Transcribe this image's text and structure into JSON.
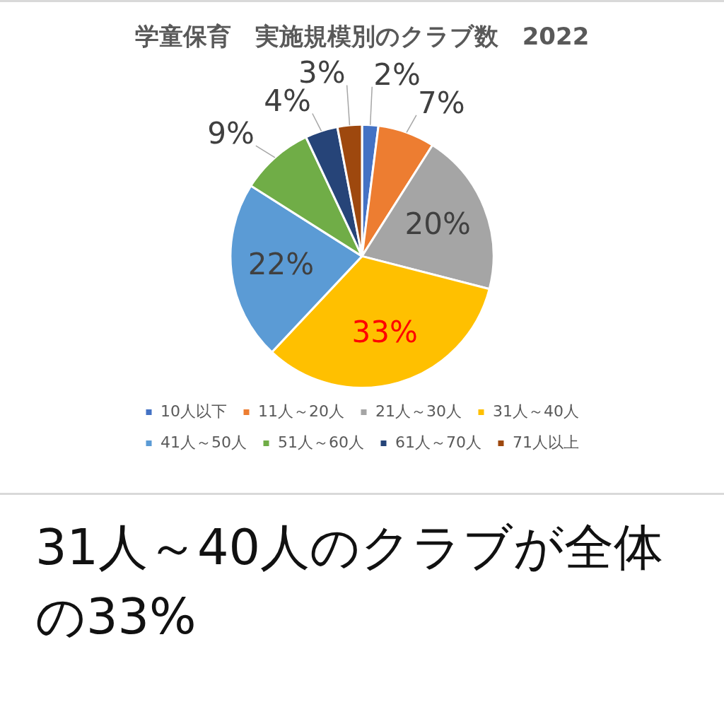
{
  "chart_data": {
    "type": "pie",
    "title": "学童保育　実施規模別のクラブ数　2022",
    "categories": [
      "10人以下",
      "11人～20人",
      "21人～30人",
      "31人～40人",
      "41人～50人",
      "51人～60人",
      "61人～70人",
      "71人以上"
    ],
    "values": [
      2,
      7,
      20,
      33,
      22,
      9,
      4,
      3
    ],
    "colors": [
      "#4472c4",
      "#ed7d31",
      "#a5a5a5",
      "#ffc000",
      "#5b9bd5",
      "#70ad47",
      "#264478",
      "#9e480e"
    ],
    "value_labels": [
      "2%",
      "7%",
      "20%",
      "33%",
      "22%",
      "9%",
      "4%",
      "3%"
    ],
    "legend": "bottom",
    "annotations": [
      "31人～40人のクラブが全体の33%"
    ]
  }
}
